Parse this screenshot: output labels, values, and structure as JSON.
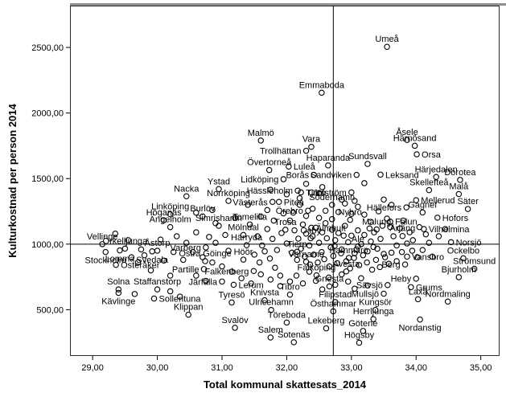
{
  "figure": {
    "background": "#ffffff",
    "frame_color": "#2b2b2b",
    "top_bar_color": "#8f8f8f",
    "marker_color": "#000000",
    "label_color": "#000000"
  },
  "chart_data": {
    "type": "scatter",
    "title": "",
    "xlabel": "Total kommunal skattesats_2014",
    "ylabel": "Kulturkostnad per person 2014",
    "x_range": [
      28.65,
      35.29
    ],
    "y_range": [
      147,
      2819
    ],
    "grid": false,
    "legend": "none",
    "x_ticks": [
      {
        "value": 29,
        "label": "29,00"
      },
      {
        "value": 30,
        "label": "30,00"
      },
      {
        "value": 31,
        "label": "31,00"
      },
      {
        "value": 32,
        "label": "32,00"
      },
      {
        "value": 33,
        "label": "33,00"
      },
      {
        "value": 34,
        "label": "34,00"
      },
      {
        "value": 35,
        "label": "35,00"
      }
    ],
    "y_ticks": [
      {
        "value": 500,
        "label": "500,00"
      },
      {
        "value": 1000,
        "label": "1000,00"
      },
      {
        "value": 1500,
        "label": "1500,00"
      },
      {
        "value": 2000,
        "label": "2000,00"
      },
      {
        "value": 2500,
        "label": "2500,00"
      }
    ],
    "reference_lines": {
      "x_value": 32.72,
      "y_value": 1000
    },
    "labeled_points": [
      {
        "name": "Umeå",
        "x": 33.55,
        "y": 2505,
        "lp": "a"
      },
      {
        "name": "Emmaboda",
        "x": 32.54,
        "y": 2155,
        "lp": "a"
      },
      {
        "name": "Malmö",
        "x": 31.6,
        "y": 1790,
        "lp": "a"
      },
      {
        "name": "Vara",
        "x": 32.38,
        "y": 1742,
        "lp": "a"
      },
      {
        "name": "Trollhättan",
        "x": 32.3,
        "y": 1712,
        "lp": "l"
      },
      {
        "name": "Haparanda",
        "x": 32.64,
        "y": 1600,
        "lp": "a"
      },
      {
        "name": "Åsele",
        "x": 33.86,
        "y": 1795,
        "lp": "a"
      },
      {
        "name": "Härnösand",
        "x": 33.98,
        "y": 1750,
        "lp": "a"
      },
      {
        "name": "Orsa",
        "x": 34.01,
        "y": 1685,
        "lp": "r"
      },
      {
        "name": "Sundsvall",
        "x": 33.25,
        "y": 1612,
        "lp": "a"
      },
      {
        "name": "Övertorneå",
        "x": 31.73,
        "y": 1565,
        "lp": "a"
      },
      {
        "name": "Luleå",
        "x": 32.03,
        "y": 1592,
        "lp": "r"
      },
      {
        "name": "Lidköping",
        "x": 31.95,
        "y": 1495,
        "lp": "l"
      },
      {
        "name": "Borås",
        "x": 32.42,
        "y": 1528,
        "lp": "l"
      },
      {
        "name": "Sandviken",
        "x": 33.08,
        "y": 1528,
        "lp": "l"
      },
      {
        "name": "Ystad",
        "x": 30.95,
        "y": 1420,
        "lp": "a"
      },
      {
        "name": "Nacka",
        "x": 30.45,
        "y": 1365,
        "lp": "a"
      },
      {
        "name": "Norrköping",
        "x": 31.1,
        "y": 1330,
        "lp": "a"
      },
      {
        "name": "Hässleholm",
        "x": 32.17,
        "y": 1408,
        "lp": "l"
      },
      {
        "name": "Tjörn",
        "x": 32.22,
        "y": 1395,
        "lp": "r"
      },
      {
        "name": "Olofström",
        "x": 33.0,
        "y": 1395,
        "lp": "l"
      },
      {
        "name": "Söderhamn",
        "x": 32.7,
        "y": 1300,
        "lp": "a"
      },
      {
        "name": "Västerås",
        "x": 31.78,
        "y": 1322,
        "lp": "l"
      },
      {
        "name": "Piteå",
        "x": 31.88,
        "y": 1322,
        "lp": "r"
      },
      {
        "name": "Örebro",
        "x": 32.33,
        "y": 1255,
        "lp": "l"
      },
      {
        "name": "Nybro",
        "x": 32.98,
        "y": 1185,
        "lp": "a"
      },
      {
        "name": "Leksand",
        "x": 33.45,
        "y": 1530,
        "lp": "r"
      },
      {
        "name": "Härjedalen",
        "x": 34.31,
        "y": 1512,
        "lp": "a"
      },
      {
        "name": "Dorotea",
        "x": 34.68,
        "y": 1490,
        "lp": "a"
      },
      {
        "name": "Skellefteå",
        "x": 34.2,
        "y": 1412,
        "lp": "a"
      },
      {
        "name": "Malå",
        "x": 34.66,
        "y": 1382,
        "lp": "a"
      },
      {
        "name": "Mellerud",
        "x": 34.0,
        "y": 1335,
        "lp": "r"
      },
      {
        "name": "Säter",
        "x": 34.8,
        "y": 1268,
        "lp": "a"
      },
      {
        "name": "Hofors",
        "x": 34.33,
        "y": 1202,
        "lp": "r"
      },
      {
        "name": "Hällefors",
        "x": 33.85,
        "y": 1280,
        "lp": "l"
      },
      {
        "name": "Gagnef",
        "x": 34.1,
        "y": 1242,
        "lp": "a"
      },
      {
        "name": "Falun",
        "x": 33.6,
        "y": 1172,
        "lp": "r"
      },
      {
        "name": "Vilhelmina",
        "x": 34.12,
        "y": 1115,
        "lp": "r"
      },
      {
        "name": "Malung",
        "x": 33.39,
        "y": 1112,
        "lp": "a"
      },
      {
        "name": "Årjäng",
        "x": 33.79,
        "y": 1062,
        "lp": "a"
      },
      {
        "name": "Norsjö",
        "x": 34.54,
        "y": 1015,
        "lp": "r"
      },
      {
        "name": "Vansbro",
        "x": 33.86,
        "y": 905,
        "lp": "r"
      },
      {
        "name": "Ockelbo",
        "x": 34.73,
        "y": 892,
        "lp": "a"
      },
      {
        "name": "Strömsund",
        "x": 34.9,
        "y": 812,
        "lp": "a"
      },
      {
        "name": "Bjurholm",
        "x": 34.66,
        "y": 748,
        "lp": "a"
      },
      {
        "name": "Grums",
        "x": 33.92,
        "y": 672,
        "lp": "r"
      },
      {
        "name": "Heby",
        "x": 34.0,
        "y": 737,
        "lp": "l"
      },
      {
        "name": "Berg",
        "x": 33.83,
        "y": 845,
        "lp": "l"
      },
      {
        "name": "Sävsjö",
        "x": 33.56,
        "y": 688,
        "lp": "l"
      },
      {
        "name": "Mullsjö",
        "x": 33.5,
        "y": 622,
        "lp": "l"
      },
      {
        "name": "Laxå",
        "x": 34.03,
        "y": 580,
        "lp": "a"
      },
      {
        "name": "Nordmaling",
        "x": 34.49,
        "y": 562,
        "lp": "a"
      },
      {
        "name": "Kungsör",
        "x": 33.37,
        "y": 498,
        "lp": "a"
      },
      {
        "name": "Herrljunga",
        "x": 33.34,
        "y": 428,
        "lp": "a"
      },
      {
        "name": "Götene",
        "x": 33.18,
        "y": 338,
        "lp": "a"
      },
      {
        "name": "Högsby",
        "x": 33.12,
        "y": 248,
        "lp": "a"
      },
      {
        "name": "Nordanstig",
        "x": 34.06,
        "y": 425,
        "lp": "b"
      },
      {
        "name": "Östhammar",
        "x": 32.72,
        "y": 488,
        "lp": "a"
      },
      {
        "name": "Filipstad",
        "x": 32.75,
        "y": 558,
        "lp": "a"
      },
      {
        "name": "Lekeberg",
        "x": 32.61,
        "y": 358,
        "lp": "a"
      },
      {
        "name": "Töreboda",
        "x": 32.0,
        "y": 402,
        "lp": "a"
      },
      {
        "name": "Salem",
        "x": 31.75,
        "y": 288,
        "lp": "a"
      },
      {
        "name": "Sotenäs",
        "x": 32.11,
        "y": 252,
        "lp": "a"
      },
      {
        "name": "Ulricehamn",
        "x": 31.76,
        "y": 498,
        "lp": "a"
      },
      {
        "name": "Knivsta",
        "x": 31.66,
        "y": 572,
        "lp": "a"
      },
      {
        "name": "Tibro",
        "x": 32.05,
        "y": 615,
        "lp": "a"
      },
      {
        "name": "Tyresö",
        "x": 31.15,
        "y": 555,
        "lp": "a"
      },
      {
        "name": "Svalöv",
        "x": 31.2,
        "y": 362,
        "lp": "a"
      },
      {
        "name": "Klippan",
        "x": 30.48,
        "y": 462,
        "lp": "a"
      },
      {
        "name": "Gnesta",
        "x": 32.66,
        "y": 678,
        "lp": "a"
      },
      {
        "name": "Falköping",
        "x": 32.46,
        "y": 762,
        "lp": "a"
      },
      {
        "name": "Avesta",
        "x": 32.92,
        "y": 792,
        "lp": "a"
      },
      {
        "name": "Hammarö",
        "x": 32.96,
        "y": 895,
        "lp": "a"
      },
      {
        "name": "Värnamo",
        "x": 32.3,
        "y": 865,
        "lp": "a"
      },
      {
        "name": "Tierp",
        "x": 32.16,
        "y": 942,
        "lp": "a"
      },
      {
        "name": "Osby",
        "x": 32.37,
        "y": 1045,
        "lp": "a"
      },
      {
        "name": "Ale",
        "x": 33.1,
        "y": 982,
        "lp": "a"
      },
      {
        "name": "Höör",
        "x": 31.33,
        "y": 882,
        "lp": "a"
      },
      {
        "name": "Härryda",
        "x": 31.38,
        "y": 992,
        "lp": "a"
      },
      {
        "name": "Mölndal",
        "x": 31.33,
        "y": 1070,
        "lp": "a"
      },
      {
        "name": "Trosa",
        "x": 31.98,
        "y": 1110,
        "lp": "a"
      },
      {
        "name": "Älmhult",
        "x": 32.38,
        "y": 1125,
        "lp": "r"
      },
      {
        "name": "Tomelilla",
        "x": 31.43,
        "y": 1150,
        "lp": "a"
      },
      {
        "name": "Linköping",
        "x": 30.2,
        "y": 1228,
        "lp": "a"
      },
      {
        "name": "Höganäs",
        "x": 30.1,
        "y": 1182,
        "lp": "a"
      },
      {
        "name": "Burlöv",
        "x": 30.7,
        "y": 1212,
        "lp": "a"
      },
      {
        "name": "Ängelholm",
        "x": 30.2,
        "y": 1130,
        "lp": "a"
      },
      {
        "name": "Simrishamn",
        "x": 30.95,
        "y": 1140,
        "lp": "a"
      },
      {
        "name": "Vellinge",
        "x": 29.15,
        "y": 1000,
        "lp": "a"
      },
      {
        "name": "Örkelljunga",
        "x": 29.5,
        "y": 966,
        "lp": "a"
      },
      {
        "name": "Åstorp",
        "x": 30.0,
        "y": 950,
        "lp": "a"
      },
      {
        "name": "Varberg",
        "x": 30.75,
        "y": 975,
        "lp": "l"
      },
      {
        "name": "Stockholm",
        "x": 29.2,
        "y": 940,
        "lp": "b"
      },
      {
        "name": "Lomma",
        "x": 29.42,
        "y": 952,
        "lp": "b"
      },
      {
        "name": "Svedala",
        "x": 29.92,
        "y": 945,
        "lp": "b"
      },
      {
        "name": "Östra Göinge",
        "x": 30.74,
        "y": 870,
        "lp": "a"
      },
      {
        "name": "Österåker",
        "x": 29.36,
        "y": 842,
        "lp": "r"
      },
      {
        "name": "Partille",
        "x": 30.72,
        "y": 810,
        "lp": "l"
      },
      {
        "name": "Falkenberg",
        "x": 31.49,
        "y": 795,
        "lp": "l"
      },
      {
        "name": "Solna",
        "x": 29.4,
        "y": 655,
        "lp": "a"
      },
      {
        "name": "Staffanstorp",
        "x": 30.0,
        "y": 655,
        "lp": "a"
      },
      {
        "name": "Kävlinge",
        "x": 29.4,
        "y": 628,
        "lp": "b"
      },
      {
        "name": "Sollentuna",
        "x": 29.95,
        "y": 585,
        "lp": "r"
      },
      {
        "name": "Järfälla",
        "x": 31.0,
        "y": 715,
        "lp": "l"
      },
      {
        "name": "Lerum",
        "x": 31.18,
        "y": 690,
        "lp": "r"
      }
    ],
    "unlabeled_points": [
      [
        32.05,
        1180
      ],
      [
        32.12,
        1105
      ],
      [
        32.18,
        1042
      ],
      [
        32.25,
        1150
      ],
      [
        32.3,
        1080
      ],
      [
        32.35,
        990
      ],
      [
        32.4,
        1060
      ],
      [
        32.45,
        1125
      ],
      [
        32.5,
        1010
      ],
      [
        32.55,
        1090
      ],
      [
        32.6,
        1160
      ],
      [
        32.62,
        1045
      ],
      [
        32.68,
        975
      ],
      [
        32.7,
        1110
      ],
      [
        32.75,
        1030
      ],
      [
        32.8,
        1085
      ],
      [
        32.85,
        960
      ],
      [
        32.9,
        1140
      ],
      [
        32.95,
        1015
      ],
      [
        33.0,
        1065
      ],
      [
        33.05,
        930
      ],
      [
        33.1,
        1105
      ],
      [
        33.15,
        1000
      ],
      [
        33.2,
        1070
      ],
      [
        33.25,
        945
      ],
      [
        33.3,
        1020
      ],
      [
        33.35,
        1090
      ],
      [
        33.4,
        965
      ],
      [
        33.45,
        1040
      ],
      [
        33.5,
        925
      ],
      [
        32.0,
        1005
      ],
      [
        32.08,
        935
      ],
      [
        32.16,
        880
      ],
      [
        32.22,
        965
      ],
      [
        32.28,
        905
      ],
      [
        32.36,
        845
      ],
      [
        32.42,
        920
      ],
      [
        32.48,
        860
      ],
      [
        32.54,
        940
      ],
      [
        32.58,
        885
      ],
      [
        32.66,
        830
      ],
      [
        32.72,
        910
      ],
      [
        32.78,
        855
      ],
      [
        32.84,
        930
      ],
      [
        32.92,
        870
      ],
      [
        32.98,
        815
      ],
      [
        33.04,
        895
      ],
      [
        33.12,
        840
      ],
      [
        33.18,
        915
      ],
      [
        33.24,
        860
      ],
      [
        33.32,
        805
      ],
      [
        33.38,
        880
      ],
      [
        33.44,
        825
      ],
      [
        33.52,
        900
      ],
      [
        33.58,
        850
      ],
      [
        31.55,
        1060
      ],
      [
        31.62,
        990
      ],
      [
        31.7,
        1115
      ],
      [
        31.78,
        1040
      ],
      [
        31.85,
        955
      ],
      [
        31.92,
        1085
      ],
      [
        31.5,
        920
      ],
      [
        31.58,
        860
      ],
      [
        31.66,
        945
      ],
      [
        31.74,
        890
      ],
      [
        31.82,
        820
      ],
      [
        31.9,
        760
      ],
      [
        30.3,
        1060
      ],
      [
        30.45,
        1010
      ],
      [
        30.6,
        1090
      ],
      [
        30.55,
        940
      ],
      [
        30.8,
        1055
      ],
      [
        30.9,
        1010
      ],
      [
        31.05,
        1070
      ],
      [
        31.1,
        950
      ],
      [
        30.7,
        900
      ],
      [
        30.85,
        860
      ],
      [
        31.0,
        830
      ],
      [
        31.15,
        790
      ],
      [
        30.4,
        880
      ],
      [
        30.25,
        940
      ],
      [
        33.6,
        1130
      ],
      [
        33.65,
        1060
      ],
      [
        33.7,
        990
      ],
      [
        33.75,
        1120
      ],
      [
        33.8,
        1180
      ],
      [
        33.9,
        1090
      ],
      [
        33.95,
        1030
      ],
      [
        34.05,
        1130
      ],
      [
        34.15,
        1075
      ],
      [
        34.2,
        1010
      ],
      [
        33.62,
        935
      ],
      [
        33.7,
        870
      ],
      [
        33.78,
        940
      ],
      [
        33.86,
        1005
      ],
      [
        33.94,
        950
      ],
      [
        34.02,
        900
      ],
      [
        34.1,
        955
      ],
      [
        34.25,
        905
      ],
      [
        34.35,
        1060
      ],
      [
        34.45,
        1115
      ],
      [
        32.1,
        1240
      ],
      [
        32.2,
        1300
      ],
      [
        32.3,
        1215
      ],
      [
        32.4,
        1270
      ],
      [
        32.5,
        1200
      ],
      [
        32.6,
        1255
      ],
      [
        32.7,
        1190
      ],
      [
        32.8,
        1245
      ],
      [
        32.9,
        1310
      ],
      [
        33.0,
        1230
      ],
      [
        33.1,
        1285
      ],
      [
        33.2,
        1225
      ],
      [
        33.3,
        1170
      ],
      [
        33.42,
        1250
      ],
      [
        31.6,
        1210
      ],
      [
        31.7,
        1260
      ],
      [
        31.8,
        1180
      ],
      [
        31.95,
        1235
      ],
      [
        30.9,
        1160
      ],
      [
        31.2,
        1200
      ],
      [
        32.15,
        760
      ],
      [
        32.25,
        700
      ],
      [
        32.35,
        790
      ],
      [
        32.45,
        720
      ],
      [
        32.55,
        655
      ],
      [
        32.65,
        745
      ],
      [
        32.75,
        690
      ],
      [
        32.85,
        770
      ],
      [
        32.95,
        715
      ],
      [
        33.05,
        660
      ],
      [
        33.15,
        740
      ],
      [
        33.25,
        685
      ],
      [
        31.3,
        740
      ],
      [
        31.45,
        700
      ],
      [
        31.6,
        770
      ],
      [
        31.75,
        730
      ],
      [
        31.9,
        680
      ],
      [
        32.05,
        715
      ],
      [
        30.6,
        760
      ],
      [
        30.75,
        720
      ],
      [
        32.2,
        1350
      ],
      [
        32.5,
        1390
      ],
      [
        32.85,
        1340
      ],
      [
        33.05,
        1330
      ],
      [
        31.4,
        1300
      ],
      [
        30.85,
        1260
      ],
      [
        33.5,
        1340
      ],
      [
        33.62,
        1300
      ],
      [
        29.6,
        900
      ],
      [
        29.7,
        860
      ],
      [
        29.8,
        915
      ],
      [
        29.55,
        1030
      ],
      [
        29.35,
        1080
      ],
      [
        30.05,
        1035
      ],
      [
        30.1,
        875
      ],
      [
        29.9,
        800
      ],
      [
        30.2,
        760
      ],
      [
        29.75,
        960
      ],
      [
        32.3,
        1460
      ],
      [
        32.55,
        1435
      ],
      [
        31.75,
        1415
      ],
      [
        33.2,
        1465
      ],
      [
        32.0,
        1380
      ],
      [
        30.6,
        1240
      ],
      [
        30.2,
        640
      ],
      [
        30.35,
        600
      ],
      [
        29.65,
        620
      ],
      [
        33.55,
        1195
      ],
      [
        33.48,
        1140
      ],
      [
        33.28,
        1120
      ],
      [
        32.88,
        1065
      ],
      [
        32.74,
        985
      ],
      [
        33.08,
        960
      ],
      [
        33.34,
        978
      ]
    ]
  }
}
